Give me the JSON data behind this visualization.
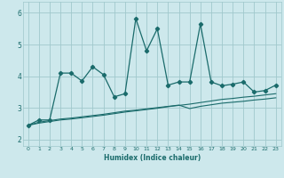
{
  "xlabel": "Humidex (Indice chaleur)",
  "xlim": [
    -0.5,
    23.5
  ],
  "ylim": [
    1.8,
    6.35
  ],
  "yticks": [
    2,
    3,
    4,
    5,
    6
  ],
  "xticks": [
    0,
    1,
    2,
    3,
    4,
    5,
    6,
    7,
    8,
    9,
    10,
    11,
    12,
    13,
    14,
    15,
    16,
    17,
    18,
    19,
    20,
    21,
    22,
    23
  ],
  "bg_color": "#cde8ec",
  "grid_color": "#a0c8cc",
  "line_color": "#1a6b6b",
  "line1_x": [
    0,
    1,
    2,
    3,
    4,
    5,
    6,
    7,
    8,
    9,
    10,
    11,
    12,
    13,
    14,
    15,
    16,
    17,
    18,
    19,
    20,
    21,
    22,
    23
  ],
  "line1_y": [
    2.45,
    2.62,
    2.62,
    4.1,
    4.1,
    3.85,
    4.3,
    4.05,
    3.35,
    3.45,
    5.82,
    4.8,
    5.5,
    3.72,
    3.82,
    3.82,
    5.65,
    3.82,
    3.7,
    3.75,
    3.82,
    3.5,
    3.55,
    3.72
  ],
  "line2_y": [
    2.45,
    2.55,
    2.6,
    2.65,
    2.68,
    2.72,
    2.76,
    2.8,
    2.85,
    2.9,
    2.93,
    2.97,
    3.01,
    3.05,
    3.09,
    2.98,
    3.05,
    3.1,
    3.15,
    3.18,
    3.21,
    3.25,
    3.28,
    3.32
  ],
  "line3_y": [
    2.45,
    2.52,
    2.57,
    2.62,
    2.65,
    2.69,
    2.73,
    2.77,
    2.82,
    2.87,
    2.91,
    2.95,
    2.99,
    3.04,
    3.08,
    3.12,
    3.17,
    3.22,
    3.27,
    3.3,
    3.34,
    3.37,
    3.41,
    3.45
  ]
}
